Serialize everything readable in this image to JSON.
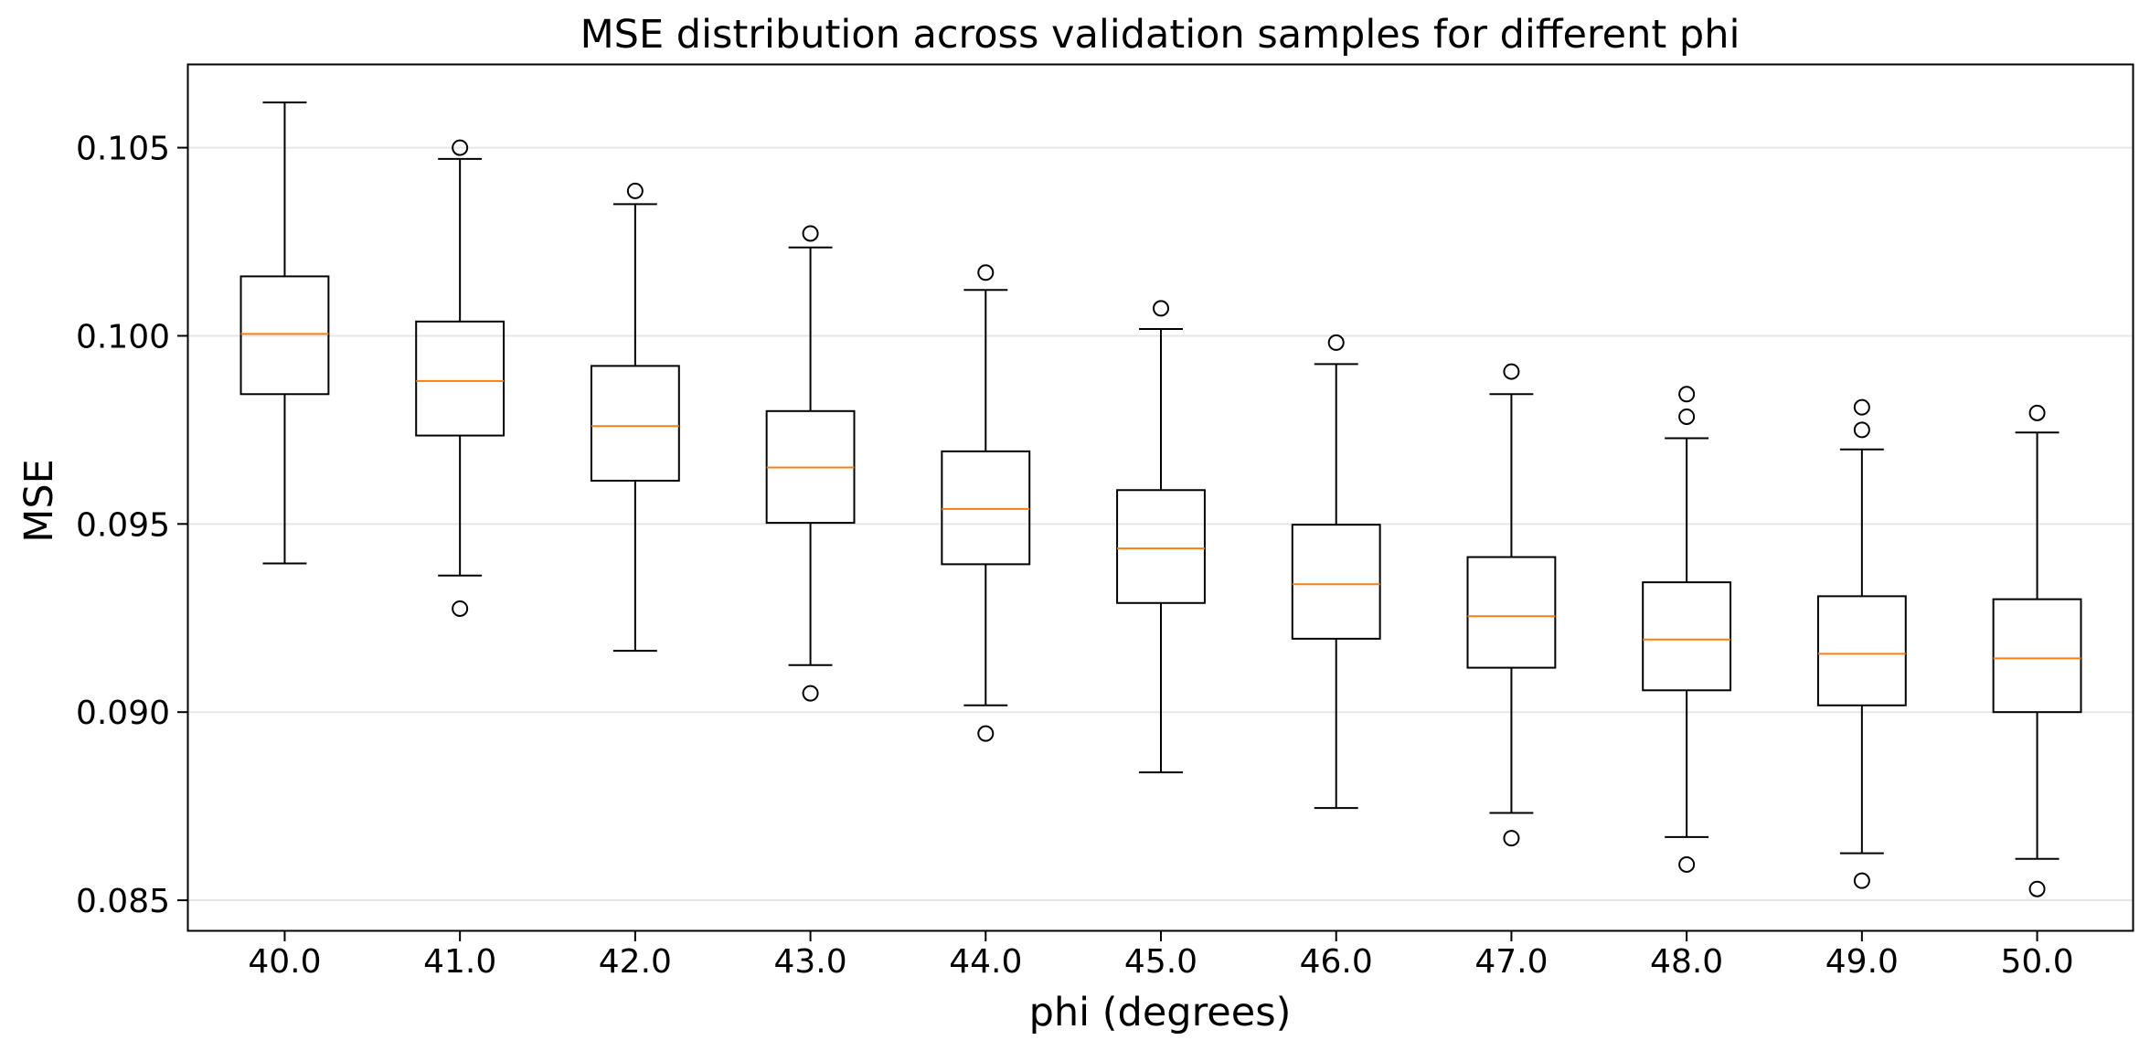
{
  "chart_data": {
    "type": "box",
    "title": "MSE distribution across validation samples for different phi",
    "xlabel": "phi (degrees)",
    "ylabel": "MSE",
    "ylim": [
      0.0842,
      0.1072
    ],
    "yticks": [
      0.085,
      0.09,
      0.095,
      0.1,
      0.105
    ],
    "ytick_labels": [
      "0.085",
      "0.090",
      "0.095",
      "0.100",
      "0.105"
    ],
    "grid": "y",
    "colors": {
      "box": "#000000",
      "median": "#ff7f0e",
      "grid": "#e6e6e6"
    },
    "boxes": [
      {
        "label": "40.0",
        "whisker_low": 0.09395,
        "q1": 0.09845,
        "median": 0.10005,
        "q3": 0.10158,
        "whisker_high": 0.1062,
        "outliers": []
      },
      {
        "label": "41.0",
        "whisker_low": 0.09363,
        "q1": 0.09735,
        "median": 0.0988,
        "q3": 0.10038,
        "whisker_high": 0.1047,
        "outliers": [
          0.105,
          0.09275
        ]
      },
      {
        "label": "42.0",
        "whisker_low": 0.09163,
        "q1": 0.09615,
        "median": 0.0976,
        "q3": 0.0992,
        "whisker_high": 0.1035,
        "outliers": [
          0.10385
        ]
      },
      {
        "label": "43.0",
        "whisker_low": 0.09125,
        "q1": 0.09503,
        "median": 0.0965,
        "q3": 0.098,
        "whisker_high": 0.10235,
        "outliers": [
          0.10272,
          0.0905
        ]
      },
      {
        "label": "44.0",
        "whisker_low": 0.09018,
        "q1": 0.09393,
        "median": 0.0954,
        "q3": 0.09693,
        "whisker_high": 0.10122,
        "outliers": [
          0.10168,
          0.08943
        ]
      },
      {
        "label": "45.0",
        "whisker_low": 0.0884,
        "q1": 0.0929,
        "median": 0.09435,
        "q3": 0.0959,
        "whisker_high": 0.10018,
        "outliers": [
          0.10073
        ]
      },
      {
        "label": "46.0",
        "whisker_low": 0.08745,
        "q1": 0.09195,
        "median": 0.0934,
        "q3": 0.09498,
        "whisker_high": 0.09925,
        "outliers": [
          0.09982
        ]
      },
      {
        "label": "47.0",
        "whisker_low": 0.08732,
        "q1": 0.09118,
        "median": 0.09255,
        "q3": 0.09412,
        "whisker_high": 0.09845,
        "outliers": [
          0.09905,
          0.08665
        ]
      },
      {
        "label": "48.0",
        "whisker_low": 0.08668,
        "q1": 0.09058,
        "median": 0.09193,
        "q3": 0.09345,
        "whisker_high": 0.09728,
        "outliers": [
          0.09845,
          0.09785,
          0.08595
        ]
      },
      {
        "label": "49.0",
        "whisker_low": 0.08625,
        "q1": 0.09018,
        "median": 0.09155,
        "q3": 0.09308,
        "whisker_high": 0.09698,
        "outliers": [
          0.0981,
          0.0975,
          0.08552
        ]
      },
      {
        "label": "50.0",
        "whisker_low": 0.0861,
        "q1": 0.09,
        "median": 0.09143,
        "q3": 0.093,
        "whisker_high": 0.09743,
        "outliers": [
          0.09795,
          0.0853
        ]
      }
    ]
  }
}
